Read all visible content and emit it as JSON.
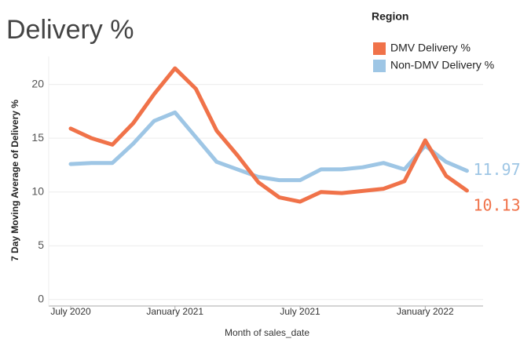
{
  "chart_data": {
    "type": "line",
    "title": "Delivery %",
    "x_label": "Month of sales_date",
    "y_label": "7 Day Moving Average of Delivery %",
    "legend_title": "Region",
    "categories": [
      "July 2020",
      null,
      null,
      null,
      null,
      "January 2021",
      null,
      null,
      null,
      null,
      null,
      "July 2021",
      null,
      null,
      null,
      null,
      null,
      "January 2022",
      null,
      null
    ],
    "series": [
      {
        "name": "DMV Delivery %",
        "color": "#f07249",
        "values": [
          15.9,
          15.0,
          14.4,
          16.4,
          19.1,
          21.5,
          19.6,
          15.7,
          13.4,
          10.9,
          9.5,
          9.1,
          10.0,
          9.9,
          10.1,
          10.3,
          11.0,
          14.8,
          11.5,
          10.13
        ],
        "value_labels": [
          null,
          null,
          null,
          null,
          null,
          null,
          null,
          null,
          null,
          null,
          null,
          null,
          null,
          null,
          null,
          null,
          null,
          null,
          null,
          "10.13"
        ]
      },
      {
        "name": "Non-DMV Delivery %",
        "color": "#9ec6e5",
        "values": [
          12.6,
          12.7,
          12.7,
          14.5,
          16.6,
          17.4,
          15.1,
          12.8,
          12.1,
          11.4,
          11.1,
          11.1,
          12.1,
          12.1,
          12.3,
          12.7,
          12.1,
          14.3,
          12.8,
          11.97
        ],
        "value_labels": [
          null,
          null,
          null,
          null,
          null,
          null,
          null,
          null,
          null,
          null,
          null,
          null,
          null,
          null,
          null,
          null,
          null,
          null,
          null,
          "11.97"
        ]
      }
    ],
    "ylim": [
      -0.6,
      22.6
    ],
    "yticks": [
      0,
      5,
      10,
      15,
      20
    ],
    "grid": true
  }
}
